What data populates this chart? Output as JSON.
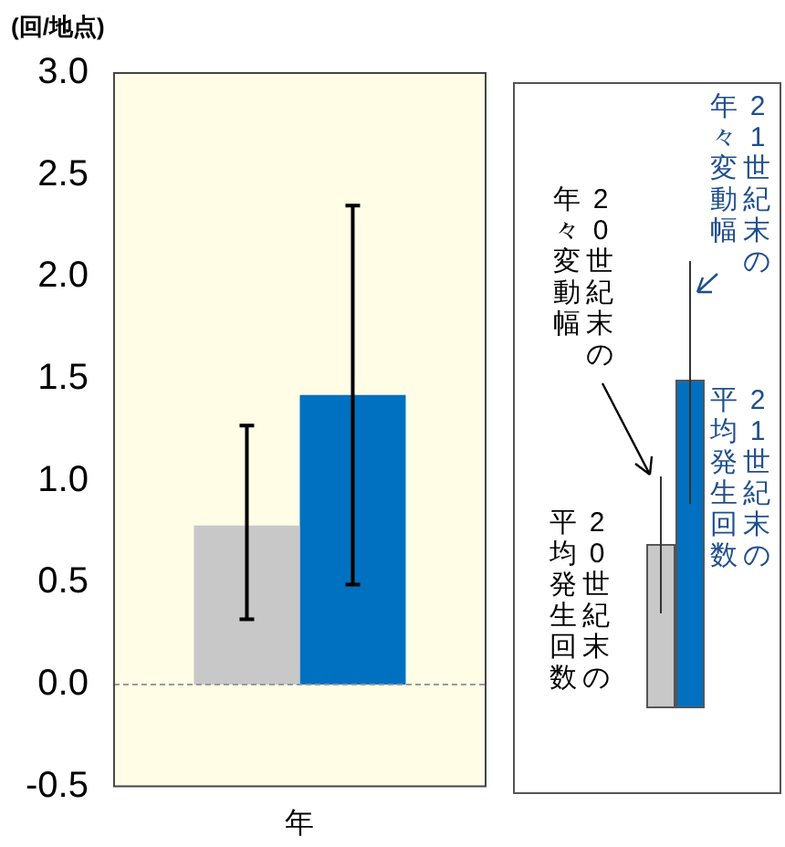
{
  "chart_data": {
    "type": "bar",
    "ylabel": "(回/地点)",
    "categories": [
      "年"
    ],
    "series": [
      {
        "name": "20世紀末の平均発生回数",
        "color": "#c8c8c8",
        "values": [
          0.78
        ],
        "errors": [
          [
            0.32,
            1.27
          ]
        ]
      },
      {
        "name": "21世紀末の平均発生回数",
        "color": "#0070c0",
        "values": [
          1.42
        ],
        "errors": [
          [
            0.49,
            2.35
          ]
        ]
      }
    ],
    "ylim": [
      -0.5,
      3
    ],
    "yticks": [
      -0.5,
      {
        "value": 0,
        "label": "0.0"
      },
      0.5,
      {
        "value": 1,
        "label": "1.0"
      },
      1.5,
      {
        "value": 2,
        "label": "2.0"
      },
      2.5,
      {
        "value": 3,
        "label": "3.0"
      }
    ],
    "ref_lines": [
      {
        "axis": "y",
        "value": 0,
        "color": "#999999",
        "line_style": "dashed"
      }
    ],
    "annotations": [
      "20世紀末の年々変動幅",
      "21世紀末の年々変動幅"
    ],
    "grid": false
  }
}
